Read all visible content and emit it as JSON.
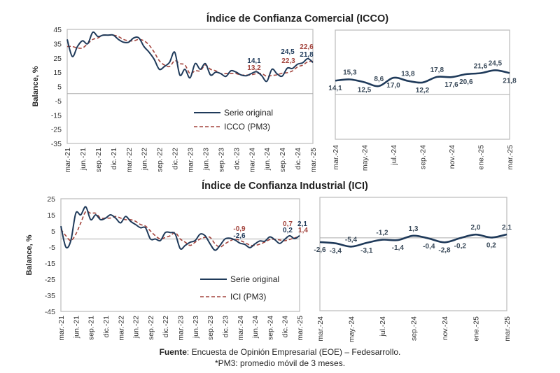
{
  "colors": {
    "original": "#1f3a5a",
    "pm3": "#a3443d",
    "axis": "#bbbbbb"
  },
  "chart_data": [
    {
      "id": "icco-long",
      "type": "line",
      "title": "Índice de Confianza Comercial (ICCO)",
      "ylabel": "Balance, %",
      "ylim": [
        -35,
        45
      ],
      "yticks": [
        45,
        35,
        25,
        15,
        5,
        -5,
        -15,
        -25,
        -35
      ],
      "xtick_labels": [
        "mar.-21",
        "jun.-21",
        "sep.-21",
        "dic.-21",
        "mar.-22",
        "jun.-22",
        "sep.-22",
        "dic.-22",
        "mar.-23",
        "jun.-23",
        "sep.-23",
        "dic.-23",
        "mar.-24",
        "jun.-24",
        "sep.-24",
        "dic.-24",
        "mar.-25"
      ],
      "legend": [
        "Serie original",
        "ICCO (PM3)"
      ],
      "series": [
        {
          "name": "Serie original",
          "style": "solid",
          "values": [
            38,
            26,
            33,
            37,
            35,
            43,
            40,
            41,
            41,
            41,
            38,
            36,
            36,
            39,
            39,
            33,
            29,
            24,
            17,
            19,
            22,
            29,
            13,
            17,
            11,
            21,
            17,
            21,
            13,
            15,
            14,
            12,
            16,
            15,
            13,
            12.5,
            14.1,
            15.3,
            12.5,
            8.6,
            17.0,
            13.8,
            12.2,
            17.8,
            17.6,
            20.6,
            21.6,
            24.5,
            21.8
          ]
        },
        {
          "name": "ICCO (PM3)",
          "style": "dashed",
          "values": [
            33,
            33,
            32,
            32,
            35,
            38,
            39,
            41,
            41,
            41,
            40,
            38,
            37,
            37,
            38,
            37,
            34,
            29,
            23,
            20,
            19,
            23,
            21,
            20,
            14,
            16,
            16,
            20,
            17,
            16,
            14,
            14,
            14,
            14,
            13,
            13,
            13.2,
            14.0,
            14.0,
            12.1,
            12.7,
            13.1,
            14.3,
            14.6,
            15.9,
            18.7,
            19.9,
            22.3,
            22.6
          ]
        }
      ],
      "annotations": [
        {
          "text": "14,1",
          "series": "Serie original",
          "x": "mar.-24"
        },
        {
          "text": "13,2",
          "series": "ICCO (PM3)",
          "x": "mar.-24"
        },
        {
          "text": "24,5",
          "series": "Serie original",
          "x": "feb.-25"
        },
        {
          "text": "21,8",
          "series": "Serie original",
          "x": "mar.-25"
        },
        {
          "text": "22,3",
          "series": "ICCO (PM3)",
          "x": "feb.-25"
        },
        {
          "text": "22,6",
          "series": "ICCO (PM3)",
          "x": "mar.-25"
        }
      ]
    },
    {
      "id": "icco-recent",
      "type": "line",
      "ylim": [
        -45,
        65
      ],
      "xtick_labels": [
        "mar.-24",
        "may.-24",
        "jul.-24",
        "sep.-24",
        "nov.-24",
        "ene.-25",
        "mar.-25"
      ],
      "values": [
        14.1,
        15.3,
        12.5,
        8.6,
        17.0,
        13.8,
        12.2,
        17.8,
        17.6,
        20.6,
        21.6,
        24.5,
        21.8
      ],
      "labels": [
        "14,1",
        "15,3",
        "12,5",
        "8,6",
        "17,0",
        "13,8",
        "12,2",
        "17,8",
        "17,6",
        "20,6",
        "21,6",
        "24,5",
        "21,8"
      ]
    },
    {
      "id": "ici-long",
      "type": "line",
      "title": "Índice de Confianza Industrial (ICI)",
      "ylabel": "Balance, %",
      "ylim": [
        -45,
        25
      ],
      "yticks": [
        25,
        15,
        5,
        -5,
        -15,
        -25,
        -35,
        -45
      ],
      "xtick_labels": [
        "mar.-21",
        "jun.-21",
        "sep.-21",
        "dic.-21",
        "mar.-22",
        "jun.-22",
        "sep.-22",
        "dic.-22",
        "mar.-23",
        "jun.-23",
        "sep.-23",
        "dic.-23",
        "mar.-24",
        "jun.-24",
        "sep.-24",
        "dic.-24",
        "mar.-25"
      ],
      "legend": [
        "Serie original",
        "ICI (PM3)"
      ],
      "series": [
        {
          "name": "Serie original",
          "style": "solid",
          "values": [
            8,
            -5,
            -1,
            16,
            15,
            20,
            12,
            15,
            12,
            13,
            15,
            13,
            10,
            14,
            11,
            9,
            7,
            7,
            0,
            0,
            -1,
            4,
            4,
            3,
            -6,
            -4,
            -2,
            -1,
            3,
            2,
            -3,
            -7,
            -4,
            0,
            0.5,
            -0.6,
            -2.6,
            -3.4,
            -5.4,
            -3.1,
            -1.2,
            -1.4,
            1.3,
            -0.4,
            -2.8,
            -0.2,
            2.0,
            0.2,
            2.1
          ]
        },
        {
          "name": "ICI (PM3)",
          "style": "dashed",
          "values": [
            6,
            2,
            -1,
            3,
            10,
            17,
            16,
            16,
            13,
            13,
            13,
            14,
            13,
            12,
            12,
            11,
            9,
            8,
            5,
            2,
            0,
            1,
            2,
            4,
            0,
            -2,
            -4,
            -2,
            0,
            1,
            1,
            -3,
            -5,
            -3,
            -1.2,
            0,
            -0.9,
            -2.2,
            -3.8,
            -4.0,
            -3.2,
            -1.9,
            -0.4,
            -0.2,
            -0.6,
            -1.1,
            -0.3,
            0.7,
            1.4
          ]
        }
      ],
      "annotations": [
        {
          "text": "-0,9",
          "series": "ICI (PM3)",
          "x": "mar.-24"
        },
        {
          "text": "-2,6",
          "series": "Serie original",
          "x": "mar.-24"
        },
        {
          "text": "0,7",
          "series": "ICI (PM3)",
          "x": "feb.-25"
        },
        {
          "text": "2,1",
          "series": "Serie original",
          "x": "mar.-25"
        },
        {
          "text": "0,2",
          "series": "Serie original",
          "x": "feb.-25"
        },
        {
          "text": "1,4",
          "series": "ICI (PM3)",
          "x": "mar.-25"
        }
      ]
    },
    {
      "id": "ici-recent",
      "type": "line",
      "ylim": [
        -45,
        25
      ],
      "xtick_labels": [
        "mar.-24",
        "may.-24",
        "jul.-24",
        "sep.-24",
        "nov.-24",
        "ene.-25",
        "mar.-25"
      ],
      "values": [
        -2.6,
        -3.4,
        -5.4,
        -3.1,
        -1.2,
        -1.4,
        1.3,
        -0.4,
        -2.8,
        -0.2,
        2.0,
        0.2,
        2.1
      ],
      "labels": [
        "-2,6",
        "-3,4",
        "-5,4",
        "-3,1",
        "-1,2",
        "-1,4",
        "1,3",
        "-0,4",
        "-2,8",
        "-0,2",
        "2,0",
        "0,2",
        "2,1"
      ]
    }
  ],
  "footer": {
    "source_label": "Fuente",
    "source_text": ": Encuesta de Opinión Empresarial (EOE) – Fedesarrollo.",
    "note": "*PM3: promedio móvil de 3 meses."
  }
}
